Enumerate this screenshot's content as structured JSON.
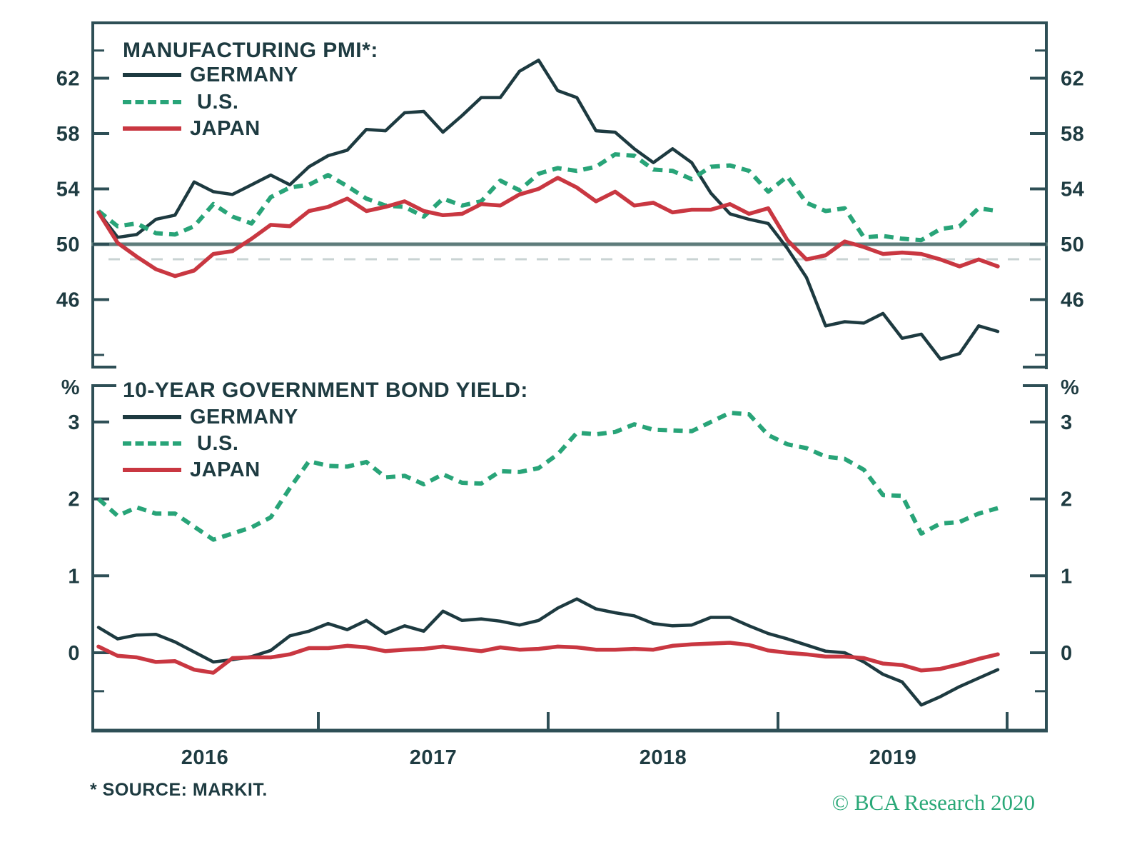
{
  "footnote": "* SOURCE: MARKIT.",
  "copyright": "© BCA Research 2020",
  "colors": {
    "germany": "#1d3a40",
    "us": "#28a478",
    "japan": "#c93741",
    "axis": "#2e4f56",
    "text": "#1e3b41",
    "ref_line": "#5e7c7b",
    "ref_line_shadow": "#c9d3d3",
    "copyright_green": "#2aa878"
  },
  "chart_data": [
    {
      "type": "line",
      "panel": "top",
      "title": "MANUFACTURING PMI*:",
      "x_start": "2016-01",
      "x_end": "2019-12",
      "frequency": "monthly",
      "x_tick_labels": [
        "2016",
        "2017",
        "2018",
        "2019"
      ],
      "y_ticks": [
        62,
        58,
        54,
        50,
        46
      ],
      "ylim": [
        41,
        66
      ],
      "reference_line": 50,
      "grid": false,
      "legend_position": "top-left",
      "series": [
        {
          "name": "GERMANY",
          "color": "#1d3a40",
          "style": "solid",
          "values": [
            52.3,
            50.5,
            50.7,
            51.8,
            52.1,
            54.5,
            53.8,
            53.6,
            54.3,
            55.0,
            54.3,
            55.6,
            56.4,
            56.8,
            58.3,
            58.2,
            59.5,
            59.6,
            58.1,
            59.3,
            60.6,
            60.6,
            62.5,
            63.3,
            61.1,
            60.6,
            58.2,
            58.1,
            56.9,
            55.9,
            56.9,
            55.9,
            53.7,
            52.2,
            51.8,
            51.5,
            49.7,
            47.6,
            44.1,
            44.4,
            44.3,
            45.0,
            43.2,
            43.5,
            41.7,
            42.1,
            44.1,
            43.7
          ]
        },
        {
          "name": "U.S.",
          "color": "#28a478",
          "style": "dashed",
          "values": [
            52.4,
            51.3,
            51.5,
            50.8,
            50.7,
            51.3,
            52.9,
            52.0,
            51.5,
            53.4,
            54.1,
            54.3,
            55.0,
            54.2,
            53.3,
            52.8,
            52.7,
            52.0,
            53.3,
            52.8,
            53.1,
            54.6,
            53.9,
            55.1,
            55.5,
            55.3,
            55.6,
            56.5,
            56.4,
            55.4,
            55.3,
            54.7,
            55.6,
            55.7,
            55.3,
            53.8,
            54.9,
            53.0,
            52.4,
            52.6,
            50.5,
            50.6,
            50.4,
            50.3,
            51.1,
            51.3,
            52.6,
            52.4
          ]
        },
        {
          "name": "JAPAN",
          "color": "#c93741",
          "style": "solid",
          "values": [
            52.3,
            50.1,
            49.1,
            48.2,
            47.7,
            48.1,
            49.3,
            49.5,
            50.4,
            51.4,
            51.3,
            52.4,
            52.7,
            53.3,
            52.4,
            52.7,
            53.1,
            52.4,
            52.1,
            52.2,
            52.9,
            52.8,
            53.6,
            54.0,
            54.8,
            54.1,
            53.1,
            53.8,
            52.8,
            53.0,
            52.3,
            52.5,
            52.5,
            52.9,
            52.2,
            52.6,
            50.3,
            48.9,
            49.2,
            50.2,
            49.8,
            49.3,
            49.4,
            49.3,
            48.9,
            48.4,
            48.9,
            48.4
          ]
        }
      ]
    },
    {
      "type": "line",
      "panel": "bottom",
      "title": "10-YEAR GOVERNMENT BOND YIELD:",
      "y_unit": "%",
      "x_start": "2016-01",
      "x_end": "2019-12",
      "frequency": "monthly",
      "x_tick_labels": [
        "2016",
        "2017",
        "2018",
        "2019"
      ],
      "y_ticks": [
        3,
        2,
        1,
        0
      ],
      "ylim": [
        -1.0,
        3.5
      ],
      "grid": false,
      "legend_position": "top-left",
      "series": [
        {
          "name": "GERMANY",
          "color": "#1d3a40",
          "style": "solid",
          "values": [
            0.33,
            0.18,
            0.23,
            0.24,
            0.14,
            0.01,
            -0.12,
            -0.09,
            -0.05,
            0.03,
            0.22,
            0.28,
            0.38,
            0.3,
            0.42,
            0.25,
            0.35,
            0.28,
            0.54,
            0.42,
            0.44,
            0.41,
            0.36,
            0.42,
            0.58,
            0.7,
            0.57,
            0.52,
            0.48,
            0.38,
            0.35,
            0.36,
            0.46,
            0.46,
            0.35,
            0.25,
            0.18,
            0.1,
            0.02,
            0.0,
            -0.12,
            -0.28,
            -0.38,
            -0.68,
            -0.57,
            -0.44,
            -0.33,
            -0.22
          ]
        },
        {
          "name": "U.S.",
          "color": "#28a478",
          "style": "dashed",
          "values": [
            2.0,
            1.78,
            1.89,
            1.81,
            1.81,
            1.64,
            1.47,
            1.55,
            1.63,
            1.76,
            2.14,
            2.49,
            2.43,
            2.42,
            2.48,
            2.28,
            2.3,
            2.19,
            2.32,
            2.21,
            2.2,
            2.36,
            2.35,
            2.4,
            2.58,
            2.86,
            2.84,
            2.87,
            2.97,
            2.9,
            2.89,
            2.88,
            3.0,
            3.12,
            3.1,
            2.83,
            2.71,
            2.66,
            2.55,
            2.52,
            2.38,
            2.05,
            2.04,
            1.55,
            1.68,
            1.7,
            1.81,
            1.88
          ]
        },
        {
          "name": "JAPAN",
          "color": "#c93741",
          "style": "solid",
          "values": [
            0.08,
            -0.04,
            -0.06,
            -0.12,
            -0.11,
            -0.22,
            -0.26,
            -0.07,
            -0.06,
            -0.06,
            -0.02,
            0.06,
            0.06,
            0.09,
            0.07,
            0.02,
            0.04,
            0.05,
            0.08,
            0.05,
            0.02,
            0.07,
            0.04,
            0.05,
            0.08,
            0.07,
            0.04,
            0.04,
            0.05,
            0.04,
            0.09,
            0.11,
            0.12,
            0.13,
            0.1,
            0.03,
            0.0,
            -0.02,
            -0.05,
            -0.05,
            -0.07,
            -0.14,
            -0.16,
            -0.23,
            -0.21,
            -0.15,
            -0.08,
            -0.02
          ]
        }
      ]
    }
  ]
}
